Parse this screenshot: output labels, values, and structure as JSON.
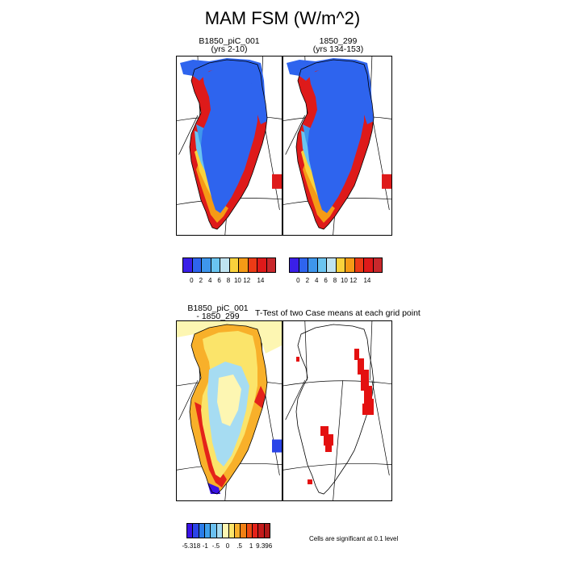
{
  "figure": {
    "title": "MAM FSM (W/m^2)",
    "note": "Cells are significant at 0.1 level"
  },
  "panels": [
    {
      "id": "case1",
      "title_line1": "B1850_piC_001",
      "title_line2": "(yrs 2-10)"
    },
    {
      "id": "case2",
      "title_line1": "1850_299",
      "title_line2": "(yrs 134-153)"
    },
    {
      "id": "diff",
      "title_line1": "B1850_piC_001",
      "title_line2": "- 1850_299"
    },
    {
      "id": "ttest",
      "title_line1": "T-Test of two Case means at each grid point",
      "title_line2": ""
    }
  ],
  "colorbars": {
    "fsm": {
      "labels": [
        "0",
        "2",
        "4",
        "6",
        "8",
        "10",
        "12",
        "14"
      ],
      "colors": [
        "#3a1fe8",
        "#2e64ee",
        "#3e96ec",
        "#6ac4f0",
        "#bfe3f0",
        "#f9d23c",
        "#f59a16",
        "#ec3b16",
        "#de1a1a",
        "#c8282c"
      ]
    },
    "diff": {
      "labels": [
        "-5.318",
        "-1",
        "-.5",
        "0",
        ".5",
        "1",
        "9.396"
      ],
      "colors": [
        "#3a12e6",
        "#2a44e8",
        "#2a7ce8",
        "#3ea0ec",
        "#6ac0f0",
        "#a6dcf2",
        "#fdf6b2",
        "#fbe46a",
        "#f8b02a",
        "#f28014",
        "#ee4a12",
        "#e4221a",
        "#c41a1a",
        "#b01818"
      ]
    }
  },
  "chart_data": {
    "type": "map",
    "region": "Greenland",
    "variable": "FSM",
    "season": "MAM",
    "units": "W/m^2",
    "panels": [
      {
        "name": "B1850_piC_001 (yrs 2-10)",
        "colorbar_range": [
          0,
          14
        ],
        "interior_value": "0",
        "coastal_max": "14"
      },
      {
        "name": "1850_299 (yrs 134-153)",
        "colorbar_range": [
          0,
          14
        ],
        "interior_value": "0",
        "coastal_max": "14"
      },
      {
        "name": "B1850_piC_001 - 1850_299",
        "colorbar_labels": [
          -5.318,
          -1,
          -0.5,
          0,
          0.5,
          1,
          9.396
        ]
      },
      {
        "name": "T-Test of two Case means at each grid point",
        "significance_level": 0.1,
        "significant_color": "#e41010"
      }
    ]
  }
}
